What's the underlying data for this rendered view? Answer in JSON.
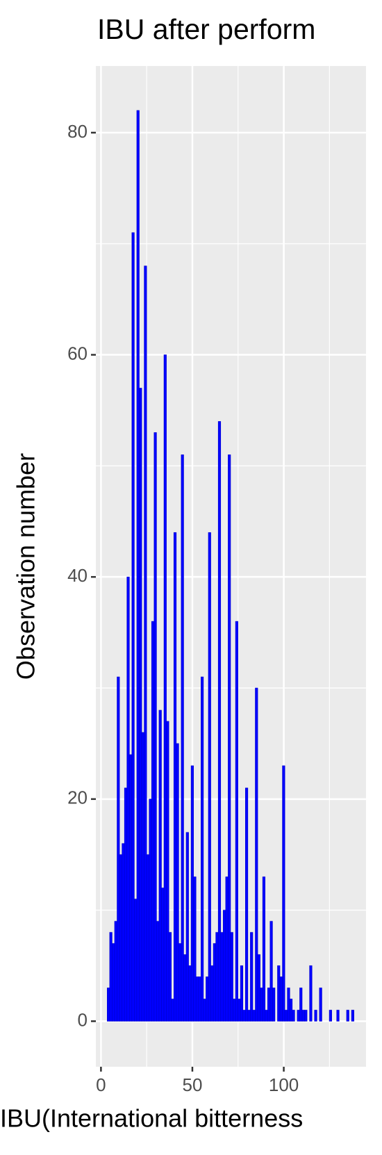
{
  "chart_data": {
    "type": "histogram",
    "title": "IBU after perform",
    "x_label": "IBU(International bitterness",
    "y_label": "Observation number",
    "bins": [
      3.4,
      4.75,
      6.1,
      7.45,
      8.8,
      10.15,
      11.5,
      12.85,
      14.2,
      15.55,
      16.9,
      18.25,
      19.6,
      20.95,
      22.3,
      23.65,
      25,
      26.35,
      27.7,
      29.05,
      30.4,
      31.75,
      33.1,
      34.45,
      35.8,
      37.15,
      38.5,
      39.85,
      41.2,
      42.55,
      43.9,
      45.25,
      46.6,
      47.95,
      49.3,
      50.65,
      52,
      53.35,
      54.7,
      56.05,
      57.4,
      58.75,
      60.1,
      61.45,
      62.8,
      64.15,
      65.5,
      66.85,
      68.2,
      69.55,
      70.9,
      72.25,
      73.6,
      74.95,
      76.3,
      77.65,
      79,
      80.35,
      81.7,
      83.05,
      84.4,
      85.75,
      87.1,
      88.45,
      89.8,
      91.15,
      92.5,
      93.85,
      95.2,
      96.55,
      97.9,
      99.25,
      100.6,
      101.95,
      103.3,
      104.65,
      106,
      107.35,
      108.7,
      110.05,
      111.4,
      112.75,
      114.1,
      115.45,
      116.8,
      118.15,
      119.5,
      120.85,
      122.2,
      123.55,
      124.9,
      126.25,
      127.6,
      128.95,
      130.3,
      131.65,
      133,
      134.35,
      135.7,
      137.05,
      138.4
    ],
    "values": [
      3,
      8,
      7,
      9,
      31,
      15,
      16,
      21,
      40,
      24,
      71,
      11,
      82,
      57,
      26,
      68,
      15,
      20,
      36,
      53,
      9,
      28,
      12,
      60,
      27,
      8,
      2,
      44,
      25,
      7,
      51,
      6,
      17,
      5,
      23,
      13,
      4,
      4,
      31,
      2,
      4,
      44,
      5,
      7,
      8,
      54,
      8,
      10,
      13,
      51,
      8,
      2,
      36,
      2,
      5,
      1,
      21,
      1,
      8,
      1,
      30,
      6,
      3,
      13,
      1,
      3,
      9,
      3,
      0,
      5,
      4,
      23,
      1,
      3,
      2,
      1,
      0,
      1,
      3,
      1,
      1,
      0,
      5,
      0,
      1,
      0,
      3,
      0,
      0,
      0,
      1,
      0,
      0,
      1,
      0,
      0,
      0,
      1,
      0,
      1
    ],
    "color": "#0000ff",
    "edge_color": "#0000cc",
    "xlim": [
      -2.8,
      145
    ],
    "xticks": [
      0,
      50,
      100
    ],
    "ylim": [
      -4.1,
      86
    ],
    "yticks": [
      0,
      20,
      40,
      60,
      80
    ],
    "grid": true
  }
}
